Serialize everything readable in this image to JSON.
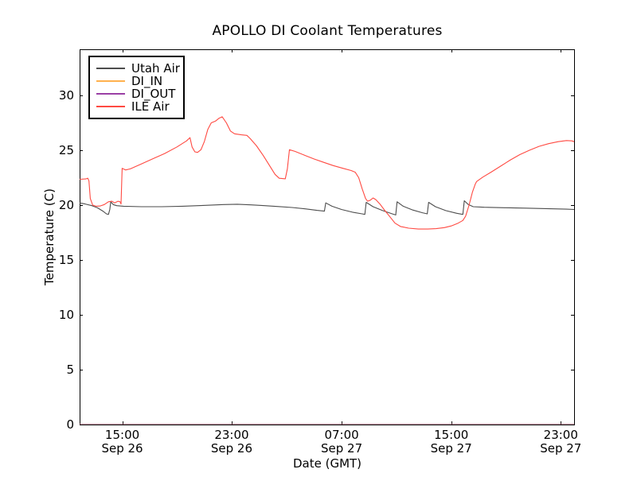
{
  "background_color": "#ffffff",
  "text_color": "#000000",
  "chart_data": {
    "type": "line",
    "title": "APOLLO DI Coolant Temperatures",
    "xlabel": "Date (GMT)",
    "ylabel": "Temperature (C)",
    "grid": false,
    "legend_position": "upper left",
    "ylim": [
      0,
      34.2
    ],
    "xlim_hours": [
      0,
      36.06
    ],
    "y_ticks": [
      0,
      5,
      10,
      15,
      20,
      25,
      30
    ],
    "x_ticks": [
      {
        "t": 3.11,
        "time": "15:00",
        "date": "Sep 26"
      },
      {
        "t": 11.09,
        "time": "23:00",
        "date": "Sep 26"
      },
      {
        "t": 19.11,
        "time": "07:00",
        "date": "Sep 27"
      },
      {
        "t": 27.1,
        "time": "15:00",
        "date": "Sep 27"
      },
      {
        "t": 35.09,
        "time": "23:00",
        "date": "Sep 27"
      }
    ],
    "series": [
      {
        "name": "Utah Air",
        "color": "#4d4d4d",
        "opacity": 1,
        "points": [
          [
            0,
            20.2
          ],
          [
            0.4,
            20.1
          ],
          [
            0.9,
            19.95
          ],
          [
            1.3,
            19.75
          ],
          [
            1.7,
            19.45
          ],
          [
            1.95,
            19.2
          ],
          [
            2.1,
            19.15
          ],
          [
            2.2,
            19.6
          ],
          [
            2.27,
            20.3
          ],
          [
            2.45,
            20.05
          ],
          [
            2.7,
            19.95
          ],
          [
            3.2,
            19.9
          ],
          [
            4.5,
            19.85
          ],
          [
            6,
            19.85
          ],
          [
            7.5,
            19.9
          ],
          [
            9,
            19.97
          ],
          [
            10.5,
            20.05
          ],
          [
            11.5,
            20.08
          ],
          [
            12.5,
            20.02
          ],
          [
            13.5,
            19.95
          ],
          [
            14.5,
            19.87
          ],
          [
            15.5,
            19.78
          ],
          [
            16.5,
            19.65
          ],
          [
            17.3,
            19.52
          ],
          [
            17.85,
            19.45
          ],
          [
            17.95,
            20.2
          ],
          [
            18.4,
            19.9
          ],
          [
            19.1,
            19.6
          ],
          [
            19.9,
            19.35
          ],
          [
            20.6,
            19.2
          ],
          [
            20.8,
            19.15
          ],
          [
            20.9,
            20.25
          ],
          [
            21.4,
            19.85
          ],
          [
            22.1,
            19.5
          ],
          [
            22.8,
            19.2
          ],
          [
            23.05,
            19.1
          ],
          [
            23.15,
            20.3
          ],
          [
            23.6,
            19.9
          ],
          [
            24.3,
            19.55
          ],
          [
            25.0,
            19.3
          ],
          [
            25.35,
            19.2
          ],
          [
            25.45,
            20.25
          ],
          [
            25.95,
            19.85
          ],
          [
            26.7,
            19.5
          ],
          [
            27.5,
            19.25
          ],
          [
            27.95,
            19.15
          ],
          [
            28.05,
            20.4
          ],
          [
            28.35,
            20.05
          ],
          [
            28.7,
            19.85
          ],
          [
            29.5,
            19.8
          ],
          [
            31,
            19.76
          ],
          [
            32.5,
            19.72
          ],
          [
            34,
            19.68
          ],
          [
            35.5,
            19.63
          ],
          [
            36.06,
            19.6
          ]
        ]
      },
      {
        "name": "DI_IN",
        "color": "#ffb14e",
        "opacity": 0.4,
        "points": [
          [
            0,
            0
          ],
          [
            36.06,
            0
          ]
        ]
      },
      {
        "name": "DI_OUT",
        "color": "#9a3fa5",
        "opacity": 0.4,
        "points": [
          [
            0,
            0
          ],
          [
            36.06,
            0
          ]
        ]
      },
      {
        "name": "ILE Air",
        "color": "#ff4a42",
        "opacity": 1,
        "points": [
          [
            0,
            22.35
          ],
          [
            0.45,
            22.38
          ],
          [
            0.6,
            22.45
          ],
          [
            0.68,
            22.2
          ],
          [
            0.78,
            20.6
          ],
          [
            0.95,
            20.0
          ],
          [
            1.2,
            19.9
          ],
          [
            1.5,
            19.92
          ],
          [
            1.8,
            20.05
          ],
          [
            2.1,
            20.3
          ],
          [
            2.35,
            20.35
          ],
          [
            2.55,
            20.2
          ],
          [
            2.8,
            20.35
          ],
          [
            2.95,
            20.3
          ],
          [
            3.02,
            20.1
          ],
          [
            3.1,
            23.35
          ],
          [
            3.35,
            23.2
          ],
          [
            3.7,
            23.3
          ],
          [
            4.5,
            23.75
          ],
          [
            5.3,
            24.2
          ],
          [
            6.2,
            24.7
          ],
          [
            7.1,
            25.3
          ],
          [
            7.8,
            25.85
          ],
          [
            8.05,
            26.15
          ],
          [
            8.2,
            25.3
          ],
          [
            8.4,
            24.85
          ],
          [
            8.6,
            24.8
          ],
          [
            8.85,
            25.05
          ],
          [
            9.1,
            25.8
          ],
          [
            9.35,
            26.9
          ],
          [
            9.6,
            27.5
          ],
          [
            9.9,
            27.65
          ],
          [
            10.15,
            27.9
          ],
          [
            10.4,
            28.05
          ],
          [
            10.7,
            27.5
          ],
          [
            11.0,
            26.75
          ],
          [
            11.3,
            26.5
          ],
          [
            11.8,
            26.4
          ],
          [
            12.2,
            26.35
          ],
          [
            12.45,
            26.05
          ],
          [
            12.9,
            25.4
          ],
          [
            13.4,
            24.5
          ],
          [
            13.9,
            23.5
          ],
          [
            14.25,
            22.8
          ],
          [
            14.55,
            22.45
          ],
          [
            15.0,
            22.4
          ],
          [
            15.15,
            23.3
          ],
          [
            15.3,
            25.05
          ],
          [
            15.7,
            24.9
          ],
          [
            16.4,
            24.55
          ],
          [
            17.1,
            24.2
          ],
          [
            17.8,
            23.9
          ],
          [
            18.5,
            23.6
          ],
          [
            19.2,
            23.35
          ],
          [
            19.8,
            23.15
          ],
          [
            20.1,
            23.0
          ],
          [
            20.35,
            22.5
          ],
          [
            20.6,
            21.5
          ],
          [
            20.85,
            20.6
          ],
          [
            21.0,
            20.35
          ],
          [
            21.2,
            20.45
          ],
          [
            21.4,
            20.65
          ],
          [
            21.6,
            20.5
          ],
          [
            21.9,
            20.1
          ],
          [
            22.2,
            19.6
          ],
          [
            22.65,
            18.9
          ],
          [
            23.0,
            18.35
          ],
          [
            23.4,
            18.05
          ],
          [
            24.0,
            17.9
          ],
          [
            24.7,
            17.82
          ],
          [
            25.4,
            17.82
          ],
          [
            26.0,
            17.85
          ],
          [
            26.6,
            17.95
          ],
          [
            27.1,
            18.1
          ],
          [
            27.6,
            18.35
          ],
          [
            27.95,
            18.6
          ],
          [
            28.15,
            19.0
          ],
          [
            28.4,
            20.0
          ],
          [
            28.65,
            21.2
          ],
          [
            28.85,
            21.9
          ],
          [
            28.95,
            22.15
          ],
          [
            29.4,
            22.55
          ],
          [
            30.0,
            23.0
          ],
          [
            30.7,
            23.55
          ],
          [
            31.4,
            24.1
          ],
          [
            32.1,
            24.6
          ],
          [
            32.8,
            25.0
          ],
          [
            33.5,
            25.35
          ],
          [
            34.2,
            25.6
          ],
          [
            34.9,
            25.78
          ],
          [
            35.5,
            25.88
          ],
          [
            35.9,
            25.85
          ],
          [
            36.06,
            25.78
          ]
        ]
      }
    ]
  }
}
